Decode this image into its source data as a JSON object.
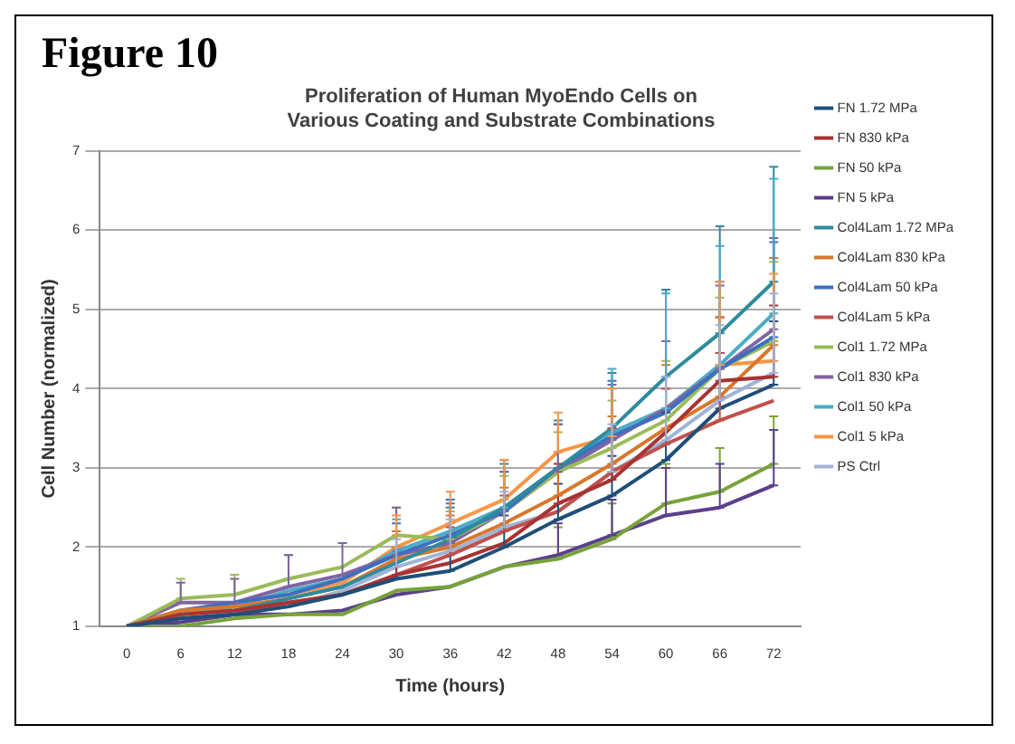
{
  "chart_data": {
    "type": "line",
    "title": "Proliferation of Human MyoEndo Cells on\nVarious Coating and Substrate Combinations",
    "xlabel": "Time (hours)",
    "ylabel": "Cell Number (normalized)",
    "annotations": [
      "Figure 10"
    ],
    "categories": [
      "0",
      "6",
      "12",
      "18",
      "24",
      "30",
      "36",
      "42",
      "48",
      "54",
      "60",
      "66",
      "72"
    ],
    "ylim": [
      1,
      7
    ],
    "yticks": [
      1,
      2,
      3,
      4,
      5,
      6,
      7
    ],
    "grid": "y",
    "legend": "right",
    "marker": "none",
    "line_style": "solid",
    "series": [
      {
        "name": "FN 1.72 MPa",
        "color": "#1f4e79",
        "values": [
          1,
          1.1,
          1.15,
          1.25,
          1.4,
          1.6,
          1.7,
          2.0,
          2.35,
          2.65,
          3.1,
          3.75,
          4.05
        ],
        "errors": [
          null,
          null,
          null,
          null,
          null,
          [
            1.6,
            1.95
          ],
          [
            1.7,
            2.05
          ],
          [
            2.0,
            2.4
          ],
          [
            2.35,
            2.8
          ],
          [
            2.65,
            3.15
          ],
          [
            3.1,
            3.7
          ],
          [
            3.75,
            4.45
          ],
          [
            4.05,
            4.85
          ]
        ]
      },
      {
        "name": "FN 830 kPa",
        "color": "#a83232",
        "values": [
          1,
          1.15,
          1.2,
          1.3,
          1.4,
          1.65,
          1.8,
          2.05,
          2.55,
          2.85,
          3.45,
          4.1,
          4.15
        ],
        "errors": [
          null,
          null,
          null,
          null,
          null,
          [
            1.65,
            2.0
          ],
          null,
          null,
          [
            2.55,
            3.05
          ],
          [
            2.85,
            3.45
          ],
          null,
          [
            4.1,
            4.9
          ],
          [
            4.15,
            5.05
          ]
        ]
      },
      {
        "name": "FN 50 kPa",
        "color": "#77a33a",
        "values": [
          1,
          1.0,
          1.1,
          1.15,
          1.15,
          1.45,
          1.5,
          1.75,
          1.85,
          2.1,
          2.55,
          2.7,
          3.05
        ],
        "errors": [
          null,
          null,
          null,
          null,
          null,
          null,
          null,
          null,
          [
            1.85,
            2.25
          ],
          [
            2.1,
            2.55
          ],
          [
            2.55,
            3.05
          ],
          [
            2.7,
            3.25
          ],
          [
            3.05,
            3.65
          ]
        ]
      },
      {
        "name": "FN 5 kPa",
        "color": "#5b3f8c",
        "values": [
          1,
          1.05,
          1.15,
          1.15,
          1.2,
          1.4,
          1.5,
          1.75,
          1.9,
          2.15,
          2.4,
          2.5,
          2.78
        ],
        "errors": [
          null,
          null,
          null,
          null,
          null,
          null,
          null,
          null,
          [
            1.9,
            2.3
          ],
          [
            2.15,
            2.6
          ],
          [
            2.4,
            3.0
          ],
          [
            2.5,
            3.05
          ],
          [
            2.78,
            3.48
          ]
        ]
      },
      {
        "name": "Col4Lam 1.72 MPa",
        "color": "#2e8b9e",
        "values": [
          1,
          1.15,
          1.2,
          1.35,
          1.5,
          1.8,
          2.1,
          2.5,
          3.0,
          3.5,
          4.15,
          4.7,
          5.35
        ],
        "errors": [
          null,
          null,
          null,
          null,
          null,
          null,
          [
            2.1,
            2.5
          ],
          [
            2.5,
            3.05
          ],
          [
            3.0,
            3.6
          ],
          [
            3.5,
            4.2
          ],
          [
            4.15,
            5.25
          ],
          [
            4.7,
            6.05
          ],
          [
            5.35,
            6.8
          ]
        ]
      },
      {
        "name": "Col4Lam 830 kPa",
        "color": "#d9772b",
        "values": [
          1,
          1.2,
          1.25,
          1.35,
          1.5,
          1.85,
          2.0,
          2.3,
          2.65,
          3.05,
          3.5,
          3.9,
          4.55
        ],
        "errors": [
          null,
          null,
          null,
          null,
          null,
          [
            1.85,
            2.2
          ],
          [
            2.0,
            2.4
          ],
          [
            2.3,
            2.75
          ],
          [
            2.65,
            3.2
          ],
          [
            3.05,
            3.65
          ],
          [
            3.5,
            4.3
          ],
          [
            3.9,
            4.9
          ],
          [
            4.55,
            5.65
          ]
        ]
      },
      {
        "name": "Col4Lam 50 kPa",
        "color": "#3a70c0",
        "values": [
          1,
          1.2,
          1.3,
          1.4,
          1.6,
          1.9,
          2.15,
          2.45,
          3.0,
          3.4,
          3.7,
          4.25,
          4.65
        ],
        "errors": [
          null,
          null,
          null,
          null,
          null,
          [
            1.9,
            2.3
          ],
          [
            2.15,
            2.6
          ],
          [
            2.45,
            2.95
          ],
          [
            3.0,
            3.55
          ],
          [
            3.4,
            4.1
          ],
          null,
          [
            4.25,
            5.35
          ],
          [
            4.65,
            5.85
          ]
        ]
      },
      {
        "name": "Col4Lam 5 kPa",
        "color": "#c0504d",
        "values": [
          1,
          1.1,
          1.15,
          1.3,
          1.4,
          1.65,
          1.9,
          2.2,
          2.45,
          2.95,
          3.3,
          3.6,
          3.85
        ],
        "errors": [
          null,
          null,
          null,
          null,
          null,
          null,
          [
            1.9,
            2.25
          ],
          [
            2.2,
            2.65
          ],
          null,
          [
            2.95,
            3.5
          ],
          [
            3.3,
            4.0
          ],
          [
            3.6,
            4.45
          ],
          null
        ]
      },
      {
        "name": "Col1 1.72 MPa",
        "color": "#9bbb59",
        "values": [
          1,
          1.35,
          1.4,
          1.6,
          1.75,
          2.15,
          2.1,
          2.45,
          2.95,
          3.25,
          3.6,
          4.25,
          4.6
        ],
        "errors": [
          null,
          [
            1.35,
            1.6
          ],
          [
            1.4,
            1.65
          ],
          [
            1.6,
            1.9
          ],
          null,
          [
            2.15,
            2.5
          ],
          [
            2.1,
            2.45
          ],
          [
            2.45,
            2.9
          ],
          [
            2.95,
            3.45
          ],
          [
            3.25,
            3.85
          ],
          [
            3.6,
            4.35
          ],
          [
            4.25,
            5.15
          ],
          [
            4.6,
            5.6
          ]
        ]
      },
      {
        "name": "Col1 830 kPa",
        "color": "#8064a2",
        "values": [
          1,
          1.3,
          1.3,
          1.5,
          1.65,
          1.9,
          2.05,
          2.45,
          2.95,
          3.35,
          3.75,
          4.25,
          4.75
        ],
        "errors": [
          null,
          [
            1.3,
            1.55
          ],
          [
            1.3,
            1.6
          ],
          [
            1.5,
            1.9
          ],
          [
            1.65,
            2.05
          ],
          [
            1.9,
            2.5
          ],
          [
            2.05,
            2.55
          ],
          [
            2.45,
            2.95
          ],
          [
            2.95,
            3.55
          ],
          [
            3.35,
            4.05
          ],
          [
            3.75,
            4.6
          ],
          [
            4.25,
            5.3
          ],
          [
            4.75,
            5.9
          ]
        ]
      },
      {
        "name": "Col1 50 kPa",
        "color": "#4bacc6",
        "values": [
          1,
          1.15,
          1.25,
          1.45,
          1.6,
          1.95,
          2.2,
          2.5,
          3.0,
          3.45,
          3.75,
          4.3,
          4.95
        ],
        "errors": [
          null,
          null,
          null,
          null,
          null,
          [
            1.95,
            2.35
          ],
          null,
          [
            2.5,
            3.1
          ],
          null,
          [
            3.45,
            4.25
          ],
          [
            3.75,
            5.2
          ],
          [
            4.3,
            5.8
          ],
          [
            4.95,
            6.65
          ]
        ]
      },
      {
        "name": "Col1 5 kPa",
        "color": "#f79646",
        "values": [
          1,
          1.2,
          1.3,
          1.4,
          1.55,
          2.0,
          2.3,
          2.6,
          3.2,
          3.4,
          3.7,
          4.3,
          4.35
        ],
        "errors": [
          null,
          null,
          null,
          null,
          null,
          [
            2.0,
            2.4
          ],
          [
            2.3,
            2.7
          ],
          [
            2.6,
            3.1
          ],
          [
            3.2,
            3.7
          ],
          [
            3.4,
            4.0
          ],
          null,
          [
            4.3,
            5.35
          ],
          [
            4.35,
            5.45
          ]
        ]
      },
      {
        "name": "PS Ctrl",
        "color": "#9fb4d6",
        "values": [
          1,
          1.05,
          1.15,
          1.25,
          1.45,
          1.75,
          1.95,
          2.25,
          2.45,
          2.95,
          3.35,
          3.85,
          4.2
        ],
        "errors": [
          null,
          null,
          null,
          null,
          null,
          [
            1.75,
            2.1
          ],
          [
            1.95,
            2.35
          ],
          [
            2.25,
            2.7
          ],
          null,
          [
            2.95,
            3.55
          ],
          [
            3.35,
            4.15
          ],
          [
            3.85,
            4.8
          ],
          [
            4.2,
            5.2
          ]
        ]
      }
    ]
  }
}
